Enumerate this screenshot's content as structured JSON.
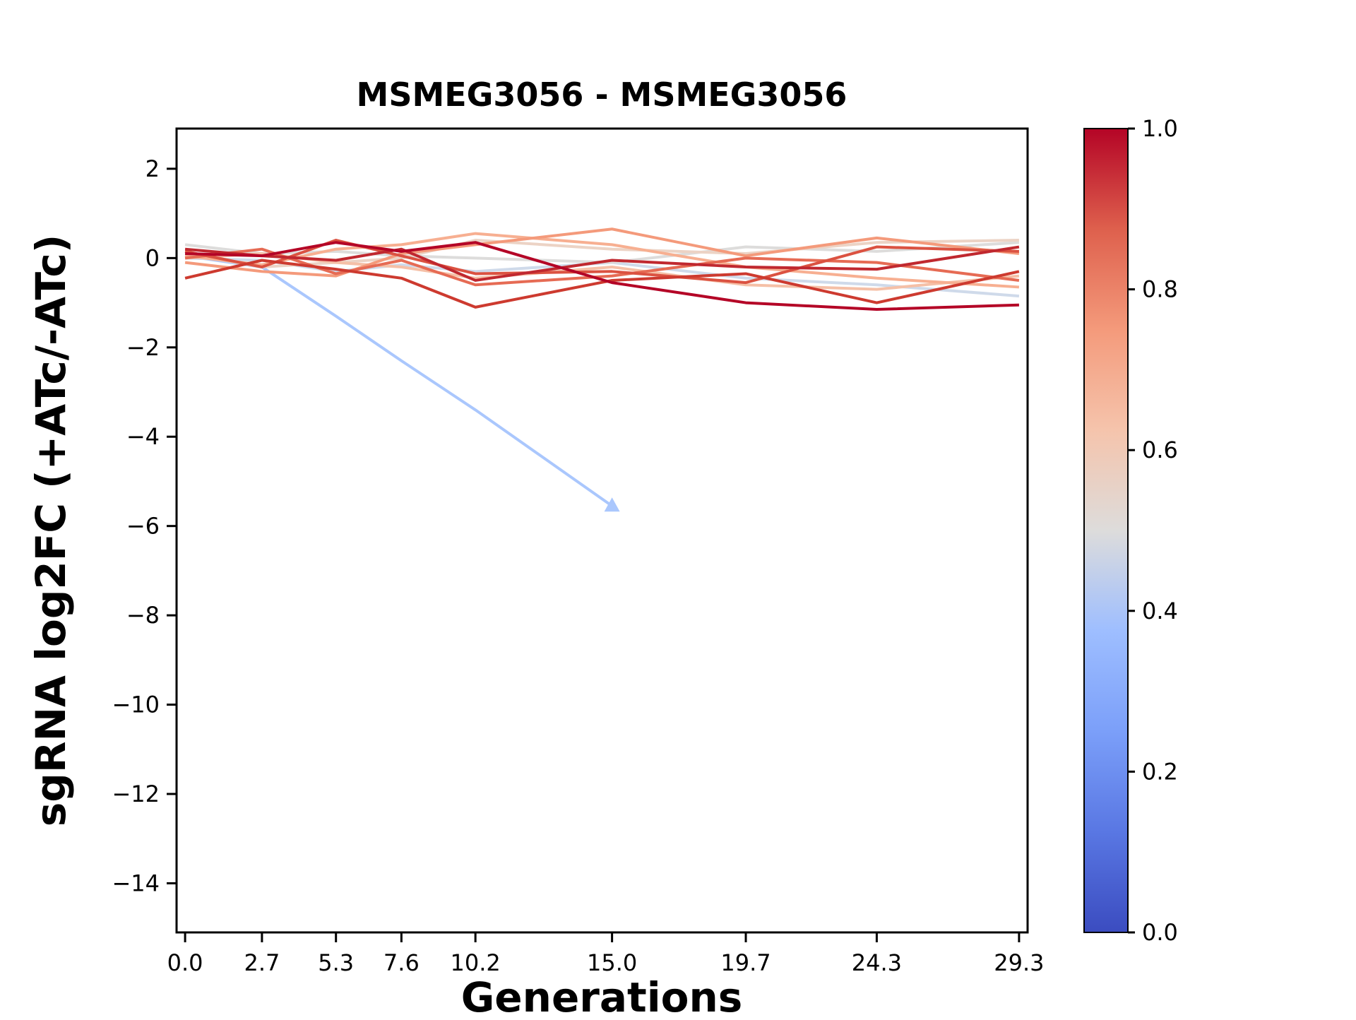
{
  "chart_data": {
    "type": "line",
    "title": "MSMEG3056 - MSMEG3056",
    "xlabel": "Generations",
    "ylabel": "sgRNA log2FC (+ATc/-ATc)",
    "x": [
      0.0,
      2.7,
      5.3,
      7.6,
      10.2,
      15.0,
      19.7,
      24.3,
      29.3
    ],
    "xtick_labels": [
      "0.0",
      "2.7",
      "5.3",
      "7.6",
      "10.2",
      "15.0",
      "19.7",
      "24.3",
      "29.3"
    ],
    "yticks": [
      2,
      0,
      -2,
      -4,
      -6,
      -8,
      -10,
      -12,
      -14
    ],
    "ytick_labels": [
      "2",
      "0",
      "−2",
      "−4",
      "−6",
      "−8",
      "−10",
      "−12",
      "−14"
    ],
    "xlim": [
      -0.3,
      29.6
    ],
    "ylim": [
      -15.1,
      2.9
    ],
    "grid": false,
    "legend": "colorbar",
    "series": [
      {
        "c": 0.42,
        "color": "#aac7fd",
        "marker": "triangle-up",
        "values": [
          0.05,
          -0.2,
          -1.3,
          -2.3,
          -3.4,
          -5.55,
          null,
          null,
          null
        ]
      },
      {
        "c": 0.46,
        "color": "#cfdaea",
        "values": [
          0.0,
          -0.05,
          -0.3,
          -0.15,
          -0.3,
          -0.1,
          -0.45,
          -0.6,
          -0.85
        ]
      },
      {
        "c": 0.5,
        "color": "#dddcdb",
        "values": [
          0.3,
          0.1,
          0.15,
          0.05,
          0.0,
          -0.1,
          0.25,
          0.15,
          0.35
        ]
      },
      {
        "c": 0.56,
        "color": "#ecd3c5",
        "values": [
          0.1,
          -0.2,
          -0.1,
          0.0,
          0.4,
          0.2,
          0.1,
          0.35,
          0.4
        ]
      },
      {
        "c": 0.62,
        "color": "#f5c0a7",
        "values": [
          0.0,
          0.1,
          -0.1,
          -0.2,
          -0.45,
          -0.2,
          -0.6,
          -0.7,
          -0.4
        ]
      },
      {
        "c": 0.68,
        "color": "#f7af91",
        "values": [
          0.05,
          -0.15,
          0.2,
          0.3,
          0.55,
          0.3,
          -0.2,
          -0.45,
          -0.65
        ]
      },
      {
        "c": 0.75,
        "color": "#f49a7b",
        "values": [
          -0.1,
          -0.3,
          -0.4,
          0.1,
          0.3,
          0.65,
          0.05,
          0.45,
          0.1
        ]
      },
      {
        "c": 0.8,
        "color": "#e66b54",
        "values": [
          0.0,
          0.2,
          -0.35,
          -0.05,
          -0.6,
          -0.4,
          0.0,
          -0.1,
          -0.5
        ]
      },
      {
        "c": 0.85,
        "color": "#db5241",
        "values": [
          0.15,
          -0.2,
          0.4,
          0.05,
          -0.35,
          -0.3,
          -0.55,
          0.25,
          0.15
        ]
      },
      {
        "c": 0.9,
        "color": "#cd3a2f",
        "values": [
          -0.45,
          -0.05,
          -0.25,
          -0.45,
          -1.1,
          -0.5,
          -0.35,
          -1.0,
          -0.3
        ]
      },
      {
        "c": 0.95,
        "color": "#c0282f",
        "values": [
          0.2,
          0.05,
          -0.05,
          0.2,
          -0.5,
          -0.05,
          -0.2,
          -0.25,
          0.25
        ]
      },
      {
        "c": 1.0,
        "color": "#b40426",
        "values": [
          0.1,
          0.05,
          0.35,
          0.15,
          0.35,
          -0.55,
          -1.0,
          -1.15,
          -1.05
        ]
      }
    ],
    "colorbar": {
      "ticks": [
        {
          "v": 1.0,
          "label": "1.0"
        },
        {
          "v": 0.8,
          "label": "0.8"
        },
        {
          "v": 0.6,
          "label": "0.6"
        },
        {
          "v": 0.4,
          "label": "0.4"
        },
        {
          "v": 0.2,
          "label": "0.2"
        },
        {
          "v": 0.0,
          "label": "0.0"
        }
      ],
      "gradient_stops": [
        {
          "t": 0.0,
          "color": "#3b4cc0"
        },
        {
          "t": 0.125,
          "color": "#5977e3"
        },
        {
          "t": 0.25,
          "color": "#7b9ff9"
        },
        {
          "t": 0.375,
          "color": "#9ebeff"
        },
        {
          "t": 0.5,
          "color": "#dddcdb"
        },
        {
          "t": 0.625,
          "color": "#f5c4ac"
        },
        {
          "t": 0.75,
          "color": "#f49a7b"
        },
        {
          "t": 0.875,
          "color": "#de604d"
        },
        {
          "t": 1.0,
          "color": "#b40426"
        }
      ]
    }
  }
}
